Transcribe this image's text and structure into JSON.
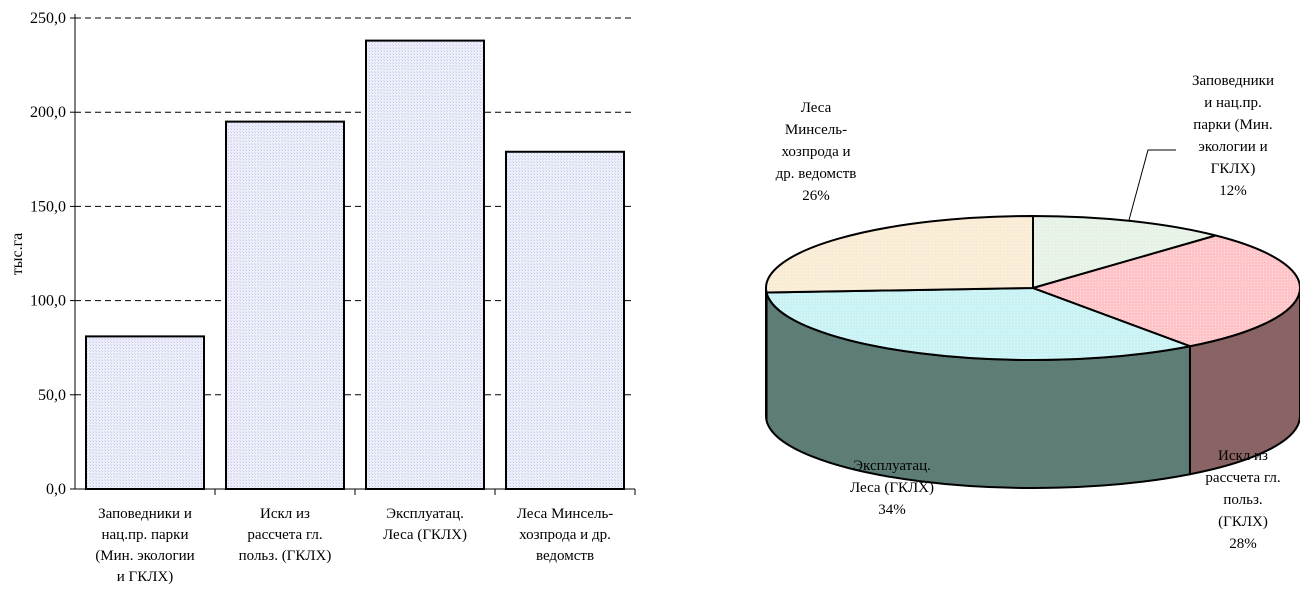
{
  "chart_data": [
    {
      "type": "bar",
      "ylabel": "тыс.га",
      "ylim": [
        0,
        250
      ],
      "y_ticks": [
        "0,0",
        "50,0",
        "100,0",
        "150,0",
        "200,0",
        "250,0"
      ],
      "grid": "horizontal dashed",
      "categories": [
        [
          "Заповедники и",
          "нац.пр. парки",
          "(Мин. экологии",
          "и ГКЛХ)"
        ],
        [
          "Искл из",
          "рассчета гл.",
          "польз. (ГКЛХ)"
        ],
        [
          "Эксплуатац.",
          "Леса (ГКЛХ)"
        ],
        [
          "Леса Минсель-",
          "хозпрода и др.",
          "ведомств"
        ]
      ],
      "values": [
        81,
        195,
        238,
        179
      ],
      "bar_color": "#e4e6f8"
    },
    {
      "type": "pie",
      "style": "3d",
      "slices": [
        {
          "label": [
            "Заповедники",
            "и нац.пр.",
            "парки (Мин.",
            "экологии и",
            "ГКЛХ)"
          ],
          "percent_label": "12%",
          "value": 12,
          "color": "#e6f2e6",
          "side_color": "#5f7a6a"
        },
        {
          "label": [
            "Искл из",
            "рассчета гл.",
            "польз.",
            "(ГКЛХ)"
          ],
          "percent_label": "28%",
          "value": 28,
          "color": "#ffc4c8",
          "side_color": "#8a6464"
        },
        {
          "label": [
            "Эксплуатац.",
            "Леса (ГКЛХ)"
          ],
          "percent_label": "34%",
          "value": 34,
          "color": "#c8f2f4",
          "side_color": "#5e7d76"
        },
        {
          "label": [
            "Леса",
            "Минсель-",
            "хозпрода и",
            "др. ведомств"
          ],
          "percent_label": "26%",
          "value": 26,
          "color": "#faecd4",
          "side_color": "#7d7a64"
        }
      ]
    }
  ]
}
